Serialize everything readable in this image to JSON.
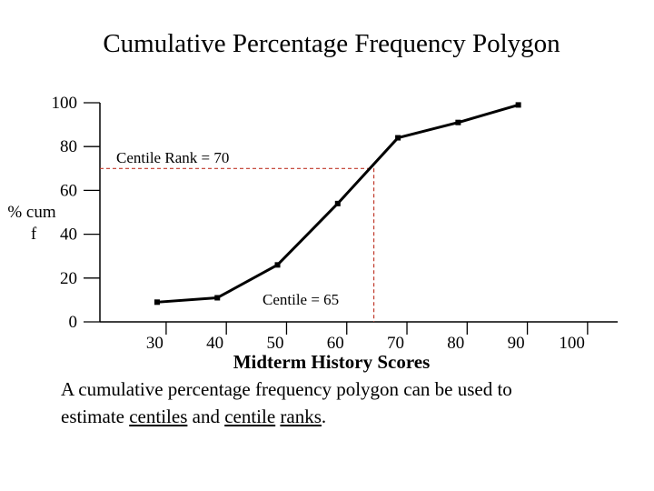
{
  "chart_data": {
    "type": "line",
    "title": "Cumulative Percentage Frequency Polygon",
    "xlabel": "Midterm History Scores",
    "ylabel_line1": "% cum",
    "ylabel_line2": "f",
    "x_ticks": [
      30,
      40,
      50,
      60,
      70,
      80,
      90,
      100
    ],
    "y_ticks": [
      0,
      20,
      40,
      60,
      80,
      100
    ],
    "xlim": [
      19,
      105
    ],
    "ylim": [
      0,
      100
    ],
    "series": [
      {
        "name": "cumulative percentage",
        "x": [
          28.5,
          38.5,
          48.5,
          58.5,
          68.5,
          78.5,
          88.5
        ],
        "y": [
          9,
          11,
          26,
          54,
          84,
          91,
          99
        ]
      }
    ],
    "annotations": {
      "centile_rank_label": "Centile Rank = 70",
      "centile_rank_value": 70,
      "centile_label": "Centile = 65",
      "centile_value": 64.5
    },
    "colors": {
      "line": "#000000",
      "guide": "#c0392b"
    }
  },
  "caption": {
    "line1": "A cumulative percentage frequency polygon can be used to",
    "line2_prefix": "estimate ",
    "word_centiles": "centiles",
    "word_and": " and ",
    "word_centile": "centile",
    "word_space": " ",
    "word_ranks": "ranks",
    "word_period": "."
  }
}
